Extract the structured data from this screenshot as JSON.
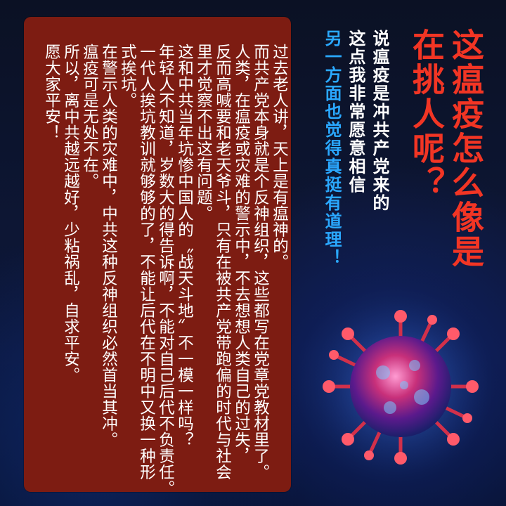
{
  "title": {
    "line1": "这瘟疫怎么像是",
    "line2": "在挑人呢？"
  },
  "subtitle": {
    "line1": "说瘟疫是冲共产党来的",
    "line2": "这点我非常愿意相信",
    "line3": "另一方面也觉得真挺有道理！"
  },
  "body": {
    "lines": [
      "过去老人讲，天上是有瘟神的。",
      "而共产党本身就是个反神组织，这些都写在党章党教材里了。",
      "人类，在瘟疫或灾难的警示中，不去想想人类自己的过失，",
      "反而高喊要和老天爷斗，只有在被共产党带跑偏的时代与社会",
      "里才觉察不出这有问题。",
      "这和中共当年坑惨中国人的〝战天斗地〞不一模一样吗？",
      "年轻人不知道，岁数大的得告诉啊，不能对自己后代不负责任。",
      "一代人挨坑教训就够够的了，不能让后代在不明中又换一种形",
      "式挨坑。",
      "在警示人类的灾难中，中共这种反神组织必然首当其冲。",
      "瘟疫可是无处不在。",
      "所以，离中共越远越好，少粘祸乱，自求平安。",
      "愿大家平安！"
    ]
  },
  "colors": {
    "title_red": "#f23524",
    "subtitle_cyan": "#2aa8ff",
    "card_bg": "#7d1c12",
    "bg_navy": "#0d1634"
  },
  "icons": {
    "virus": "virus-illustration"
  }
}
